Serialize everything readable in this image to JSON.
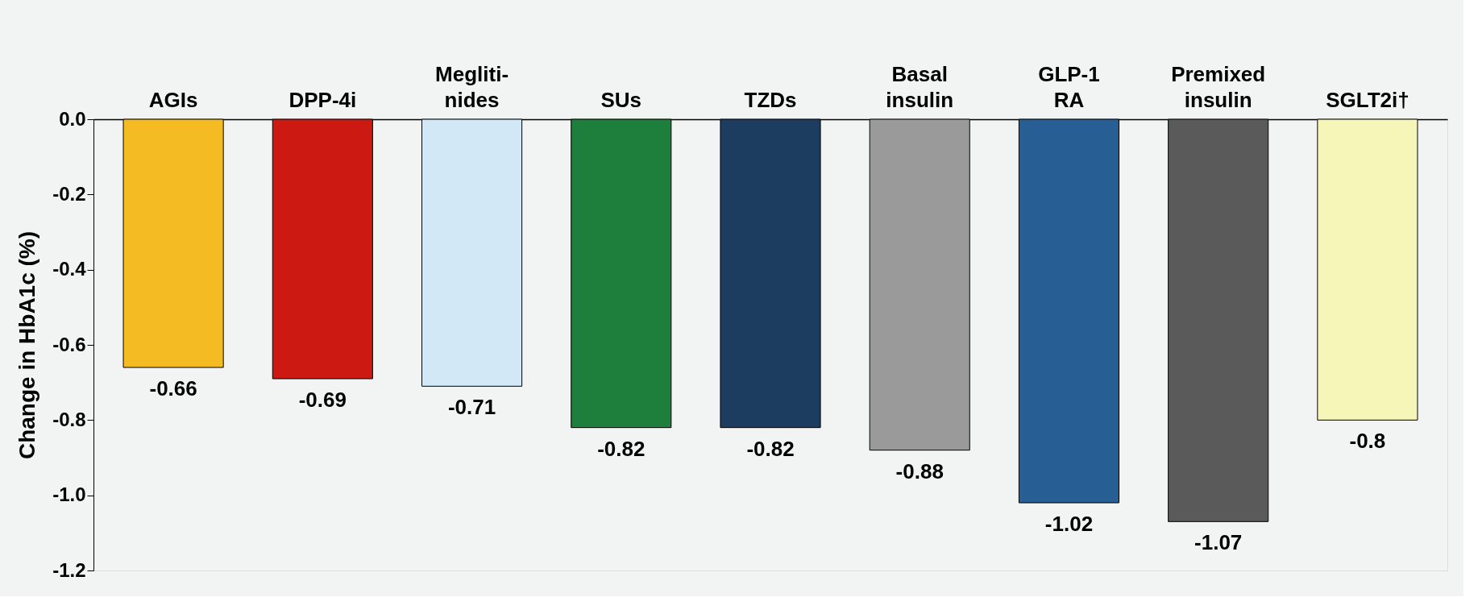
{
  "chart_data": {
    "type": "bar",
    "ylabel": "Change in HbA1c (%)",
    "categories": [
      "AGIs",
      "DPP-4i",
      "Megliti-\nnides",
      "SUs",
      "TZDs",
      "Basal\ninsulin",
      "GLP-1\nRA",
      "Premixed\ninsulin",
      "SGLT2i†"
    ],
    "values": [
      -0.66,
      -0.69,
      -0.71,
      -0.82,
      -0.82,
      -0.88,
      -1.02,
      -1.07,
      -0.8
    ],
    "colors": [
      "#f4bc22",
      "#cc1a12",
      "#d3e8f6",
      "#1e7e3c",
      "#1c3d60",
      "#9a9a9a",
      "#275f95",
      "#5a5a5a",
      "#f5f6b8"
    ],
    "ylim": [
      -1.2,
      0
    ],
    "yticks": [
      {
        "value": 0,
        "label": "0.0"
      },
      {
        "value": -0.2,
        "label": "-0.2"
      },
      {
        "value": -0.4,
        "label": "-0.4"
      },
      {
        "value": -0.6,
        "label": "-0.6"
      },
      {
        "value": -0.8,
        "label": "-0.8"
      },
      {
        "value": -1.0,
        "label": "-1.0"
      },
      {
        "value": -1.2,
        "label": "-1.2"
      }
    ],
    "data_labels": true,
    "grid": false
  }
}
